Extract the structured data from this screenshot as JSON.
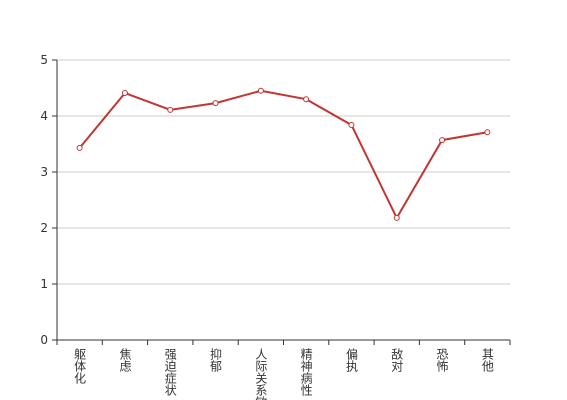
{
  "chart_data": {
    "type": "line",
    "categories": [
      "躯体化",
      "焦虑",
      "强迫症状",
      "抑郁",
      "人际关系敏感",
      "精神病性",
      "偏执",
      "敌对",
      "恐怖",
      "其他"
    ],
    "values": [
      3.43,
      4.41,
      4.11,
      4.23,
      4.45,
      4.3,
      3.84,
      2.18,
      3.57,
      3.71
    ],
    "color": "#c23531",
    "ylim": [
      0,
      5
    ],
    "yticks": [
      0,
      1,
      2,
      3,
      4,
      5
    ],
    "grid": true
  }
}
